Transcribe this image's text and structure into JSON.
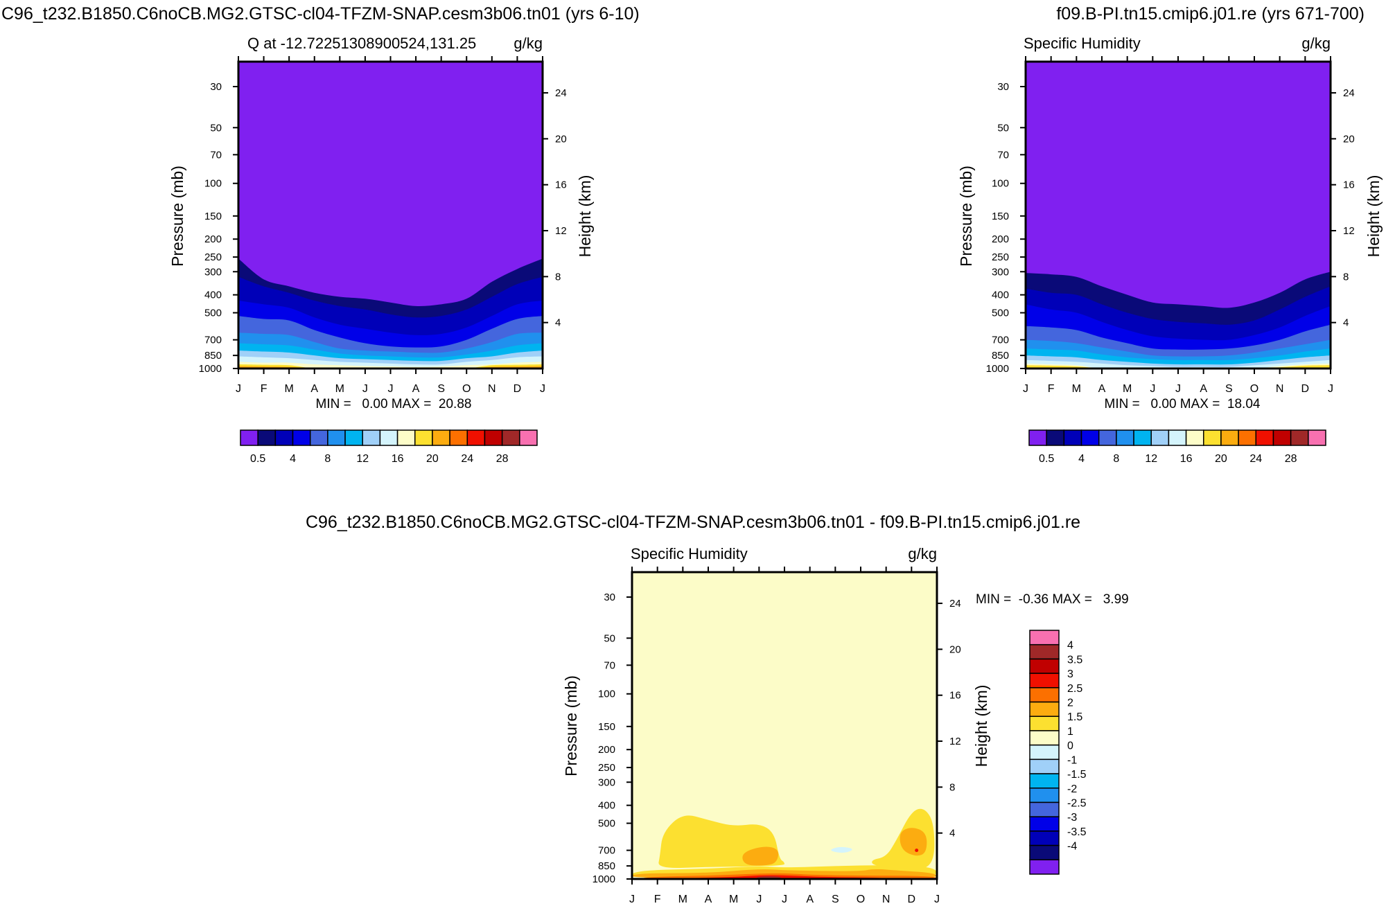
{
  "figure": {
    "top_left_title": "C96_t232.B1850.C6noCB.MG2.GTSC-cl04-TFZM-SNAP.cesm3b06.tn01 (yrs 6-10)",
    "top_right_title": "f09.B-PI.tn15.cmip6.j01.re (yrs 671-700)",
    "bottom_title": "C96_t232.B1850.C6noCB.MG2.GTSC-cl04-TFZM-SNAP.cesm3b06.tn01 - f09.B-PI.tn15.cmip6.j01.re"
  },
  "colors": {
    "abs_palette": [
      "#8020f0",
      "#0a0a78",
      "#0000b8",
      "#0000e8",
      "#4466dd",
      "#2090ee",
      "#00b4f0",
      "#a0d0f8",
      "#d4f4fc",
      "#fcfcc8",
      "#fce030",
      "#fcac10",
      "#fc7000",
      "#f01000",
      "#c00000",
      "#a02828",
      "#f870b0"
    ],
    "diff_palette": [
      "#8020f0",
      "#0a0a78",
      "#0000b8",
      "#0000e8",
      "#4466dd",
      "#2090ee",
      "#00b4f0",
      "#a0d0f8",
      "#d4f4fc",
      "#fcfcc8",
      "#fce030",
      "#fcac10",
      "#fc7000",
      "#f01000",
      "#c00000",
      "#a02828",
      "#f870b0"
    ]
  },
  "chart_data": [
    {
      "type": "contour",
      "title": "Q at -12.72251308900524,131.25",
      "units": "g/kg",
      "xlabel": "",
      "ylabel": "Pressure (mb)",
      "y2label": "Height (km)",
      "x": [
        "J",
        "F",
        "M",
        "A",
        "M",
        "J",
        "J",
        "A",
        "S",
        "O",
        "N",
        "D",
        "J"
      ],
      "pressure_ticks": [
        30,
        50,
        70,
        100,
        150,
        200,
        250,
        300,
        400,
        500,
        700,
        850,
        1000
      ],
      "height_ticks": [
        4,
        8,
        12,
        16,
        20,
        24
      ],
      "stats": "MIN =   0.00 MAX =  20.88",
      "legend_labels": [
        "0.5",
        "4",
        "8",
        "12",
        "16",
        "20",
        "24",
        "28"
      ],
      "levels_g_per_kg": [
        0.5,
        2,
        4,
        6,
        8,
        10,
        12,
        14,
        16,
        18,
        20,
        22,
        24,
        26,
        28,
        30
      ],
      "level_top_mb": [
        [
          255,
          330,
          360,
          390,
          410,
          420,
          440,
          460,
          450,
          420,
          340,
          290,
          255
        ],
        [
          320,
          360,
          390,
          430,
          460,
          480,
          510,
          530,
          520,
          480,
          410,
          350,
          320
        ],
        [
          430,
          450,
          470,
          530,
          580,
          610,
          640,
          660,
          650,
          600,
          520,
          450,
          430
        ],
        [
          520,
          540,
          550,
          620,
          680,
          730,
          760,
          770,
          760,
          700,
          610,
          540,
          520
        ],
        [
          640,
          650,
          660,
          720,
          780,
          800,
          810,
          820,
          820,
          780,
          720,
          650,
          640
        ],
        [
          730,
          740,
          750,
          790,
          830,
          850,
          860,
          870,
          870,
          840,
          800,
          750,
          730
        ],
        [
          800,
          810,
          820,
          850,
          880,
          890,
          900,
          910,
          910,
          880,
          860,
          820,
          800
        ],
        [
          860,
          870,
          880,
          900,
          920,
          930,
          940,
          950,
          950,
          920,
          900,
          870,
          860
        ],
        [
          920,
          930,
          930,
          950,
          960,
          970,
          975,
          980,
          975,
          960,
          950,
          930,
          920
        ],
        [
          950,
          955,
          960,
          1000,
          1000,
          1000,
          1000,
          1000,
          1000,
          1000,
          960,
          955,
          950
        ],
        [
          970,
          975,
          980,
          1000,
          1000,
          1000,
          1000,
          1000,
          1000,
          1000,
          980,
          975,
          970
        ]
      ]
    },
    {
      "type": "contour",
      "title": "Specific Humidity",
      "units": "g/kg",
      "xlabel": "",
      "ylabel": "Pressure (mb)",
      "y2label": "Height (km)",
      "x": [
        "J",
        "F",
        "M",
        "A",
        "M",
        "J",
        "J",
        "A",
        "S",
        "O",
        "N",
        "D",
        "J"
      ],
      "pressure_ticks": [
        30,
        50,
        70,
        100,
        150,
        200,
        250,
        300,
        400,
        500,
        700,
        850,
        1000
      ],
      "height_ticks": [
        4,
        8,
        12,
        16,
        20,
        24
      ],
      "stats": "MIN =   0.00 MAX =  18.04",
      "legend_labels": [
        "0.5",
        "4",
        "8",
        "12",
        "16",
        "20",
        "24",
        "28"
      ],
      "levels_g_per_kg": [
        0.5,
        2,
        4,
        6,
        8,
        10,
        12,
        14,
        16,
        18,
        20,
        22,
        24,
        26,
        28,
        30
      ],
      "level_top_mb": [
        [
          305,
          310,
          320,
          360,
          400,
          440,
          450,
          460,
          470,
          440,
          390,
          330,
          300
        ],
        [
          370,
          390,
          400,
          450,
          500,
          540,
          560,
          570,
          580,
          550,
          480,
          410,
          360
        ],
        [
          450,
          480,
          500,
          560,
          620,
          670,
          690,
          700,
          700,
          660,
          600,
          520,
          460
        ],
        [
          590,
          600,
          620,
          680,
          730,
          780,
          790,
          790,
          780,
          750,
          700,
          630,
          580
        ],
        [
          700,
          710,
          730,
          770,
          810,
          850,
          860,
          860,
          850,
          820,
          780,
          740,
          700
        ],
        [
          780,
          790,
          800,
          840,
          870,
          890,
          900,
          900,
          900,
          880,
          850,
          810,
          780
        ],
        [
          850,
          860,
          870,
          900,
          920,
          940,
          950,
          950,
          950,
          930,
          900,
          870,
          850
        ],
        [
          900,
          910,
          920,
          940,
          960,
          970,
          980,
          980,
          980,
          960,
          940,
          920,
          900
        ],
        [
          940,
          950,
          960,
          1000,
          1000,
          1000,
          1000,
          1000,
          1000,
          1000,
          970,
          950,
          940
        ],
        [
          960,
          965,
          975,
          1000,
          1000,
          1000,
          1000,
          1000,
          1000,
          1000,
          985,
          965,
          960
        ]
      ]
    },
    {
      "type": "contour",
      "title": "Specific Humidity",
      "units": "g/kg",
      "xlabel": "",
      "ylabel": "Pressure (mb)",
      "y2label": "Height (km)",
      "x": [
        "J",
        "F",
        "M",
        "A",
        "M",
        "J",
        "J",
        "A",
        "S",
        "O",
        "N",
        "D",
        "J"
      ],
      "pressure_ticks": [
        30,
        50,
        70,
        100,
        150,
        200,
        250,
        300,
        400,
        500,
        700,
        850,
        1000
      ],
      "height_ticks": [
        4,
        8,
        12,
        16,
        20,
        24
      ],
      "stats": "MIN =  -0.36 MAX =   3.99",
      "legend_labels": [
        "4",
        "3.5",
        "3",
        "2.5",
        "2",
        "1.5",
        "1",
        "0",
        "-1",
        "-1.5",
        "-2",
        "-2.5",
        "-3",
        "-3.5",
        "-4"
      ],
      "levels_g_per_kg": [
        -4,
        -3.5,
        -3,
        -2.5,
        -2,
        -1.5,
        -1,
        0,
        1,
        1.5,
        2,
        2.5,
        3,
        3.5,
        4
      ],
      "background_value": "0 to 1",
      "features": [
        "1 to 1.5 g/kg blob from Feb to Jun between 450 and 800 mb",
        "1 to 1.5 g/kg blob from Oct to Dec between 430 and 800 mb",
        "1.5 to 2 g/kg core in Dec near 600 mb",
        "1.5 to 2.5 g/kg layer near surface 900-1000 mb",
        "-1 to 0 g/kg small patch near Sep at 700 mb"
      ]
    }
  ]
}
